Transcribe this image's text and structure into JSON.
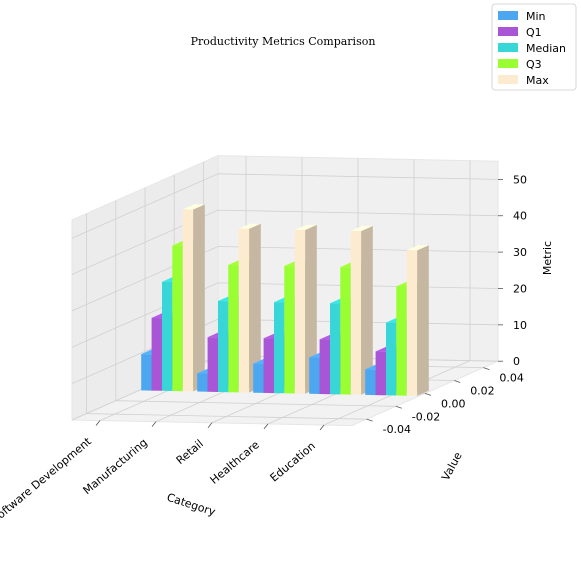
{
  "chart_data": {
    "type": "bar",
    "title": "Productivity Metrics Comparison",
    "xlabel": "Category",
    "ylabel": "Value",
    "zlabel": "Metric",
    "categories": [
      "Software Development",
      "Manufacturing",
      "Retail",
      "Healthcare",
      "Education"
    ],
    "series": [
      {
        "name": "Min",
        "color": "#4da6f0",
        "values": [
          10,
          5,
          8,
          10,
          7
        ]
      },
      {
        "name": "Q1",
        "color": "#a855d6",
        "values": [
          20,
          15,
          15,
          15,
          12
        ]
      },
      {
        "name": "Median",
        "color": "#38d6d6",
        "values": [
          30,
          25,
          25,
          25,
          20
        ]
      },
      {
        "name": "Q3",
        "color": "#99ff33",
        "values": [
          40,
          35,
          35,
          35,
          30
        ]
      },
      {
        "name": "Max",
        "color": "#fdebd0",
        "values": [
          50,
          45,
          45,
          45,
          40
        ]
      }
    ],
    "zlim": [
      0,
      55
    ],
    "z_ticks": [
      0,
      10,
      20,
      30,
      40,
      50
    ],
    "y_ticks": [
      "-0.04",
      "-0.02",
      "0.00",
      "0.02",
      "0.04"
    ],
    "ylim": [
      -0.05,
      0.05
    ],
    "grid": true,
    "legend_position": "top-right"
  }
}
